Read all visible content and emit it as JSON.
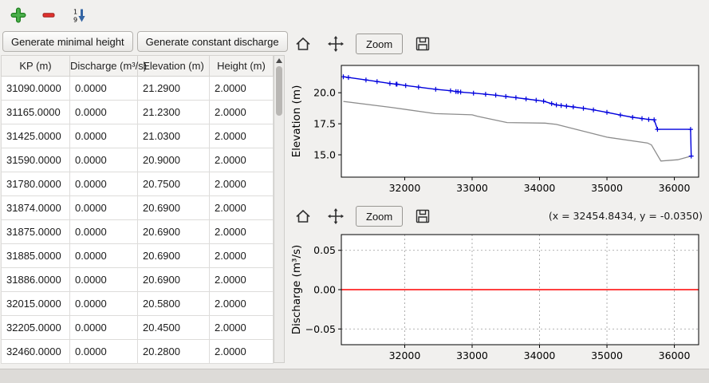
{
  "main_toolbar": {
    "sort_top_digit": "1",
    "sort_bottom_digit": "9"
  },
  "buttons": {
    "generate_minimal_height": "Generate minimal height",
    "generate_constant_discharge": "Generate constant discharge"
  },
  "table": {
    "columns": [
      "KP (m)",
      "Discharge (m³/s)",
      "Elevation (m)",
      "Height (m)"
    ],
    "rows": [
      [
        "31090.0000",
        "0.0000",
        "21.2900",
        "2.0000"
      ],
      [
        "31165.0000",
        "0.0000",
        "21.2300",
        "2.0000"
      ],
      [
        "31425.0000",
        "0.0000",
        "21.0300",
        "2.0000"
      ],
      [
        "31590.0000",
        "0.0000",
        "20.9000",
        "2.0000"
      ],
      [
        "31780.0000",
        "0.0000",
        "20.7500",
        "2.0000"
      ],
      [
        "31874.0000",
        "0.0000",
        "20.6900",
        "2.0000"
      ],
      [
        "31875.0000",
        "0.0000",
        "20.6900",
        "2.0000"
      ],
      [
        "31885.0000",
        "0.0000",
        "20.6900",
        "2.0000"
      ],
      [
        "31886.0000",
        "0.0000",
        "20.6900",
        "2.0000"
      ],
      [
        "32015.0000",
        "0.0000",
        "20.5800",
        "2.0000"
      ],
      [
        "32205.0000",
        "0.0000",
        "20.4500",
        "2.0000"
      ],
      [
        "32460.0000",
        "0.0000",
        "20.2800",
        "2.0000"
      ]
    ]
  },
  "figure1": {
    "zoom_label": "Zoom"
  },
  "figure2": {
    "zoom_label": "Zoom",
    "coords": "(x = 32454.8434,  y = -0.0350)"
  },
  "colors": {
    "water_line_blue": "#0000dd",
    "bottom_line_gray": "#8c8c8c",
    "discharge_line_red": "#ff0000",
    "add_green": "#4cb04c",
    "remove_red": "#e0312d",
    "sort_blue": "#3465a4"
  },
  "chart_data": [
    {
      "type": "line",
      "name": "elevation-profile",
      "title": "",
      "xlabel": "",
      "ylabel": "Elevation (m)",
      "xlim": [
        31060,
        36360
      ],
      "ylim": [
        13.2,
        22.2
      ],
      "grid": false,
      "legend": "none",
      "margins": {
        "l": 66,
        "r": 10,
        "t": 6,
        "b": 30
      },
      "xticks": [
        {
          "v": 32000,
          "label": "32000"
        },
        {
          "v": 33000,
          "label": "33000"
        },
        {
          "v": 34000,
          "label": "34000"
        },
        {
          "v": 35000,
          "label": "35000"
        },
        {
          "v": 36000,
          "label": "36000"
        }
      ],
      "yticks": [
        {
          "v": 15.0,
          "label": "15.0"
        },
        {
          "v": 17.5,
          "label": "17.5"
        },
        {
          "v": 20.0,
          "label": "20.0"
        }
      ],
      "series": [
        {
          "name": "bottom-elevation",
          "color": "#8c8c8c",
          "lw": 1.3,
          "x": [
            31090,
            31800,
            32450,
            33000,
            33080,
            33520,
            34080,
            34250,
            35000,
            35600,
            35660,
            35800,
            36050,
            36250
          ],
          "y": [
            19.3,
            18.82,
            18.32,
            18.22,
            18.1,
            17.6,
            17.55,
            17.45,
            16.42,
            15.95,
            15.8,
            14.5,
            14.6,
            14.9
          ]
        },
        {
          "name": "water-elevation",
          "color": "#0000dd",
          "lw": 1.4,
          "marker": "plus",
          "x": [
            31090,
            31165,
            31425,
            31590,
            31780,
            31874,
            31885,
            32015,
            32205,
            32460,
            32680,
            32760,
            32790,
            32830,
            33020,
            33200,
            33350,
            33500,
            33650,
            33800,
            33950,
            34060,
            34180,
            34250,
            34320,
            34400,
            34500,
            34650,
            34800,
            35000,
            35200,
            35380,
            35520,
            35620,
            35700,
            35750,
            36240,
            36250
          ],
          "y": [
            21.29,
            21.23,
            21.03,
            20.9,
            20.75,
            20.69,
            20.69,
            20.58,
            20.45,
            20.28,
            20.16,
            20.1,
            20.08,
            20.05,
            19.97,
            19.88,
            19.8,
            19.7,
            19.6,
            19.5,
            19.4,
            19.32,
            19.12,
            19.02,
            18.97,
            18.92,
            18.86,
            18.75,
            18.62,
            18.42,
            18.2,
            18.02,
            17.92,
            17.85,
            17.82,
            17.05,
            17.05,
            14.9
          ]
        }
      ]
    },
    {
      "type": "line",
      "name": "discharge-profile",
      "title": "",
      "xlabel": "",
      "ylabel": "Discharge (m³/s)",
      "xlim": [
        31060,
        36360
      ],
      "ylim": [
        -0.07,
        0.07
      ],
      "grid": true,
      "legend": "none",
      "margins": {
        "l": 66,
        "r": 10,
        "t": 6,
        "b": 30
      },
      "xticks": [
        {
          "v": 32000,
          "label": "32000"
        },
        {
          "v": 33000,
          "label": "33000"
        },
        {
          "v": 34000,
          "label": "34000"
        },
        {
          "v": 35000,
          "label": "35000"
        },
        {
          "v": 36000,
          "label": "36000"
        }
      ],
      "yticks": [
        {
          "v": -0.05,
          "label": "−0.05"
        },
        {
          "v": 0,
          "label": "0.00"
        },
        {
          "v": 0.05,
          "label": "0.05"
        }
      ],
      "series": [
        {
          "name": "constant-discharge",
          "color": "#ff0000",
          "lw": 1.4,
          "x": [
            31060,
            36360
          ],
          "y": [
            0,
            0
          ]
        }
      ]
    }
  ]
}
